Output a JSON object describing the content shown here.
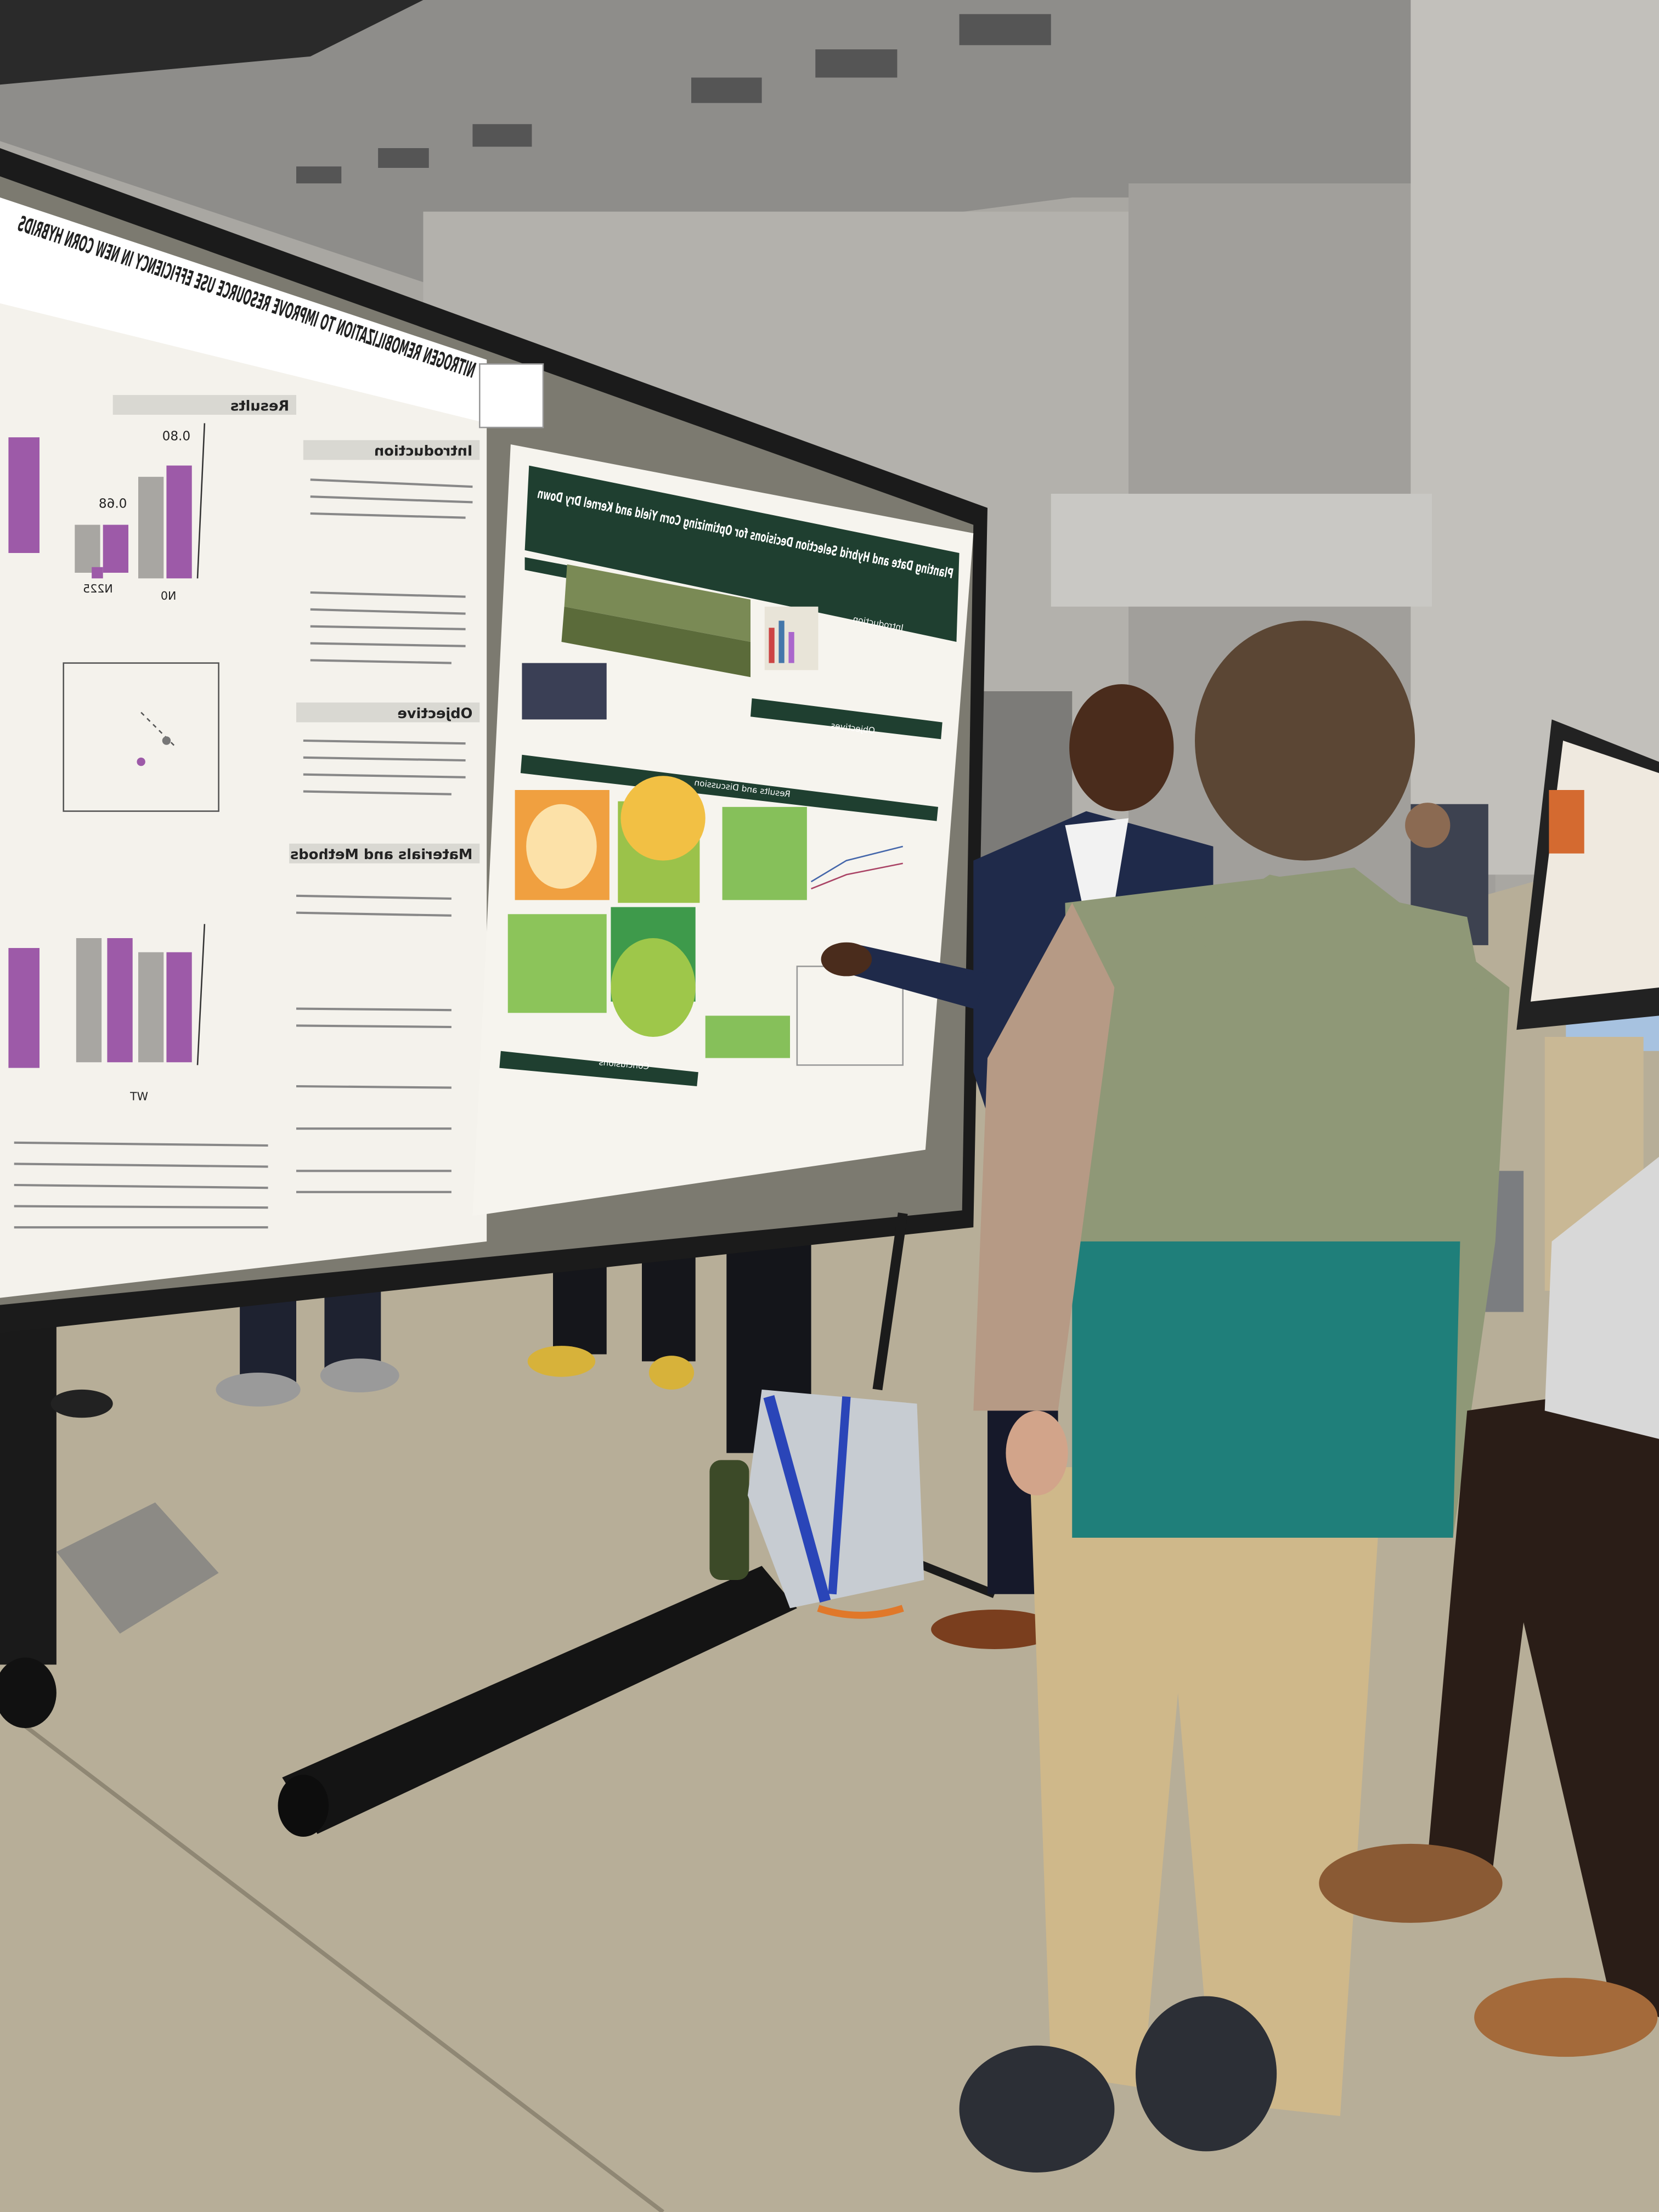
{
  "left_poster": {
    "title": "NITROGEN REMOBILIZATION TO IMPROVE RESOURCE USE EFFICIENCY IN NEW CORN HYBRIDS",
    "sections": [
      "Introduction",
      "Objective",
      "Materials and Methods",
      "Results"
    ],
    "bar_labels": [
      "0.80",
      "0.68"
    ],
    "categories": [
      "N0",
      "N225",
      "WT"
    ]
  },
  "right_poster": {
    "title": "Planting Date and Hybrid Selection Decisions for Optimizing Corn Yield and Kernel Dry Down",
    "sections": [
      "Introduction",
      "Objectives",
      "Results and Discussion",
      "Conclusions"
    ]
  }
}
